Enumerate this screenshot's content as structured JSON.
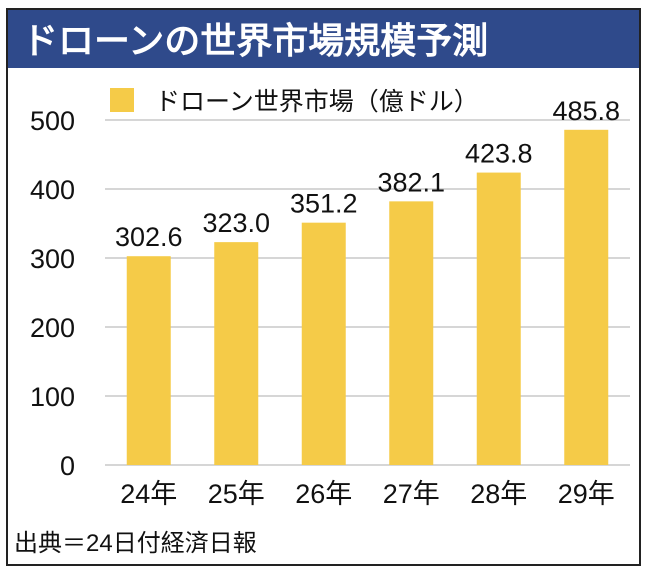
{
  "chart_data": {
    "type": "bar",
    "title": "ドローンの世界市場規模予測",
    "categories": [
      "24年",
      "25年",
      "26年",
      "27年",
      "28年",
      "29年"
    ],
    "series": [
      {
        "name": "ドローン世界市場（億ドル）",
        "values": [
          302.6,
          323.0,
          351.2,
          382.1,
          423.8,
          485.8
        ]
      }
    ],
    "data_labels": [
      "302.6",
      "323.0",
      "351.2",
      "382.1",
      "423.8",
      "485.8"
    ],
    "yticks": [
      "0",
      "100",
      "200",
      "300",
      "400",
      "500"
    ],
    "ylim": [
      0,
      500
    ],
    "grid": true,
    "legend_position": "top",
    "xlabel": "",
    "ylabel": "",
    "source": "出典＝24日付経済日報",
    "colors": {
      "bar": "#F5CB48",
      "title_bg": "#2F4A8B",
      "grid": "#C8C8C8",
      "border": "#222222"
    }
  }
}
